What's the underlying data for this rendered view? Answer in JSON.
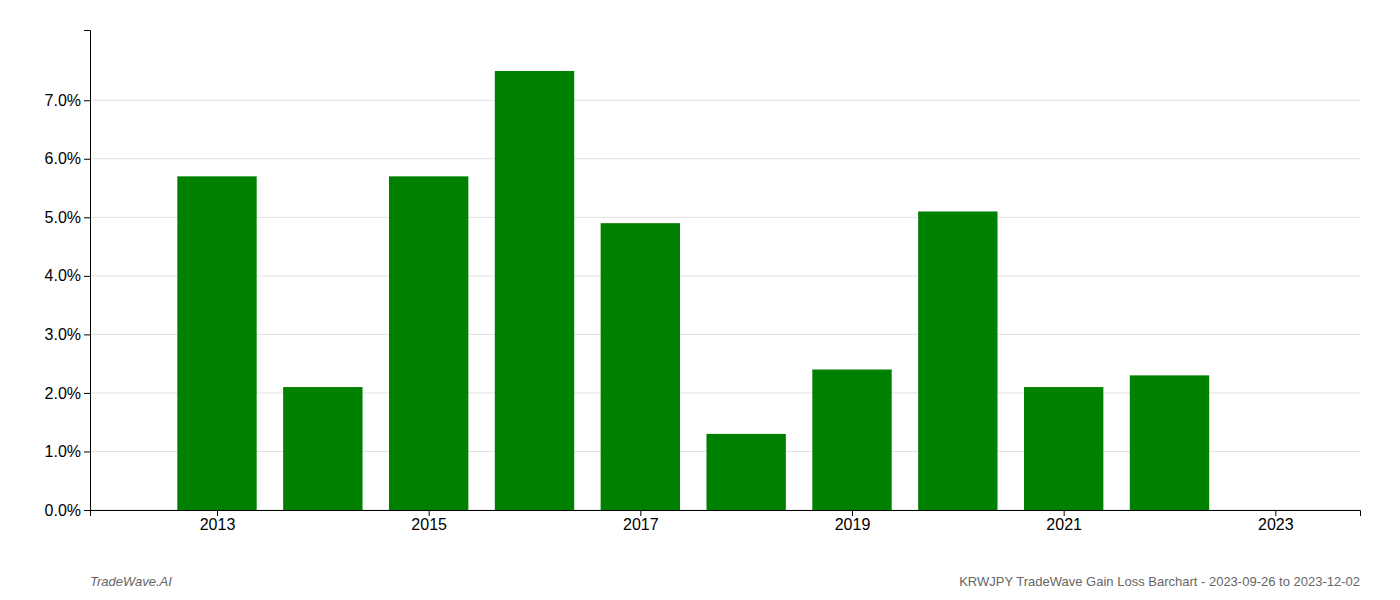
{
  "chart_data": {
    "type": "bar",
    "x": [
      2013,
      2014,
      2015,
      2016,
      2017,
      2018,
      2019,
      2020,
      2021,
      2022
    ],
    "values": [
      0.057,
      0.021,
      0.057,
      0.075,
      0.049,
      0.013,
      0.024,
      0.051,
      0.021,
      0.023
    ],
    "color": "#008000",
    "xlim": [
      2011.8,
      2023.8
    ],
    "xticks": [
      2013,
      2015,
      2017,
      2019,
      2021,
      2023
    ],
    "ylim": [
      0,
      0.082
    ],
    "yticks": [
      {
        "value": 0.0,
        "label": "0.0%"
      },
      {
        "value": 0.01,
        "label": "1.0%"
      },
      {
        "value": 0.02,
        "label": "2.0%"
      },
      {
        "value": 0.03,
        "label": "3.0%"
      },
      {
        "value": 0.04,
        "label": "4.0%"
      },
      {
        "value": 0.05,
        "label": "5.0%"
      },
      {
        "value": 0.06,
        "label": "6.0%"
      },
      {
        "value": 0.07,
        "label": "7.0%"
      }
    ],
    "grid": true,
    "annotations": [
      "TradeWave.AI",
      "KRWJPY TradeWave Gain Loss Barchart - 2023-09-26 to 2023-12-02"
    ]
  }
}
